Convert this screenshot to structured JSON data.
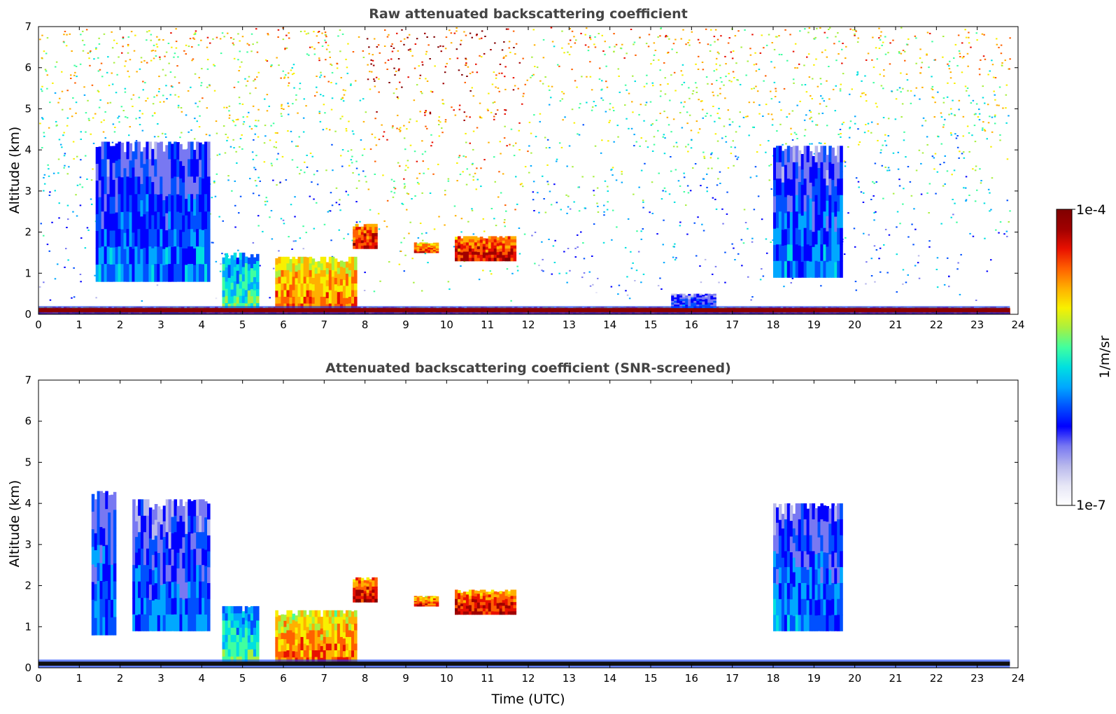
{
  "colors": {
    "colormap": [
      "#ffffff",
      "#e6e6f6",
      "#b8b8ec",
      "#7878f2",
      "#0000ff",
      "#0050ff",
      "#00a8ff",
      "#00e0e0",
      "#40ffa0",
      "#a8f040",
      "#f8f000",
      "#ffb000",
      "#ff6000",
      "#e81000",
      "#a00000",
      "#800000"
    ],
    "surface_layer": "#8b0000",
    "screened_surface": "#111111"
  },
  "chart_data": [
    {
      "type": "heatmap",
      "title": "Raw attenuated backscattering coefficient",
      "ylabel": "Altitude (km)",
      "xlabel": "",
      "xlim": [
        0,
        24
      ],
      "ylim": [
        0,
        7
      ],
      "xticks": [
        "0",
        "1",
        "2",
        "3",
        "4",
        "5",
        "6",
        "7",
        "8",
        "9",
        "10",
        "11",
        "12",
        "13",
        "14",
        "15",
        "16",
        "17",
        "18",
        "19",
        "20",
        "21",
        "22",
        "23",
        "24"
      ],
      "yticks": [
        "0",
        "1",
        "2",
        "3",
        "4",
        "5",
        "6",
        "7"
      ],
      "layers": [
        {
          "x0": 0.0,
          "x1": 23.8,
          "y0": 0.0,
          "y1": 0.18,
          "level": 0.92
        },
        {
          "x0": 4.5,
          "x1": 5.4,
          "y0": 0.1,
          "y1": 1.5,
          "level": 0.55
        },
        {
          "x0": 5.8,
          "x1": 7.8,
          "y0": 0.1,
          "y1": 1.4,
          "level": 0.8
        },
        {
          "x0": 7.7,
          "x1": 8.3,
          "y0": 1.6,
          "y1": 2.2,
          "level": 0.9
        },
        {
          "x0": 9.2,
          "x1": 9.8,
          "y0": 1.5,
          "y1": 1.75,
          "level": 0.85
        },
        {
          "x0": 10.2,
          "x1": 11.7,
          "y0": 1.3,
          "y1": 1.9,
          "level": 0.9
        },
        {
          "x0": 1.4,
          "x1": 4.2,
          "y0": 0.8,
          "y1": 4.2,
          "level": 0.4
        },
        {
          "x0": 18.0,
          "x1": 19.7,
          "y0": 0.9,
          "y1": 4.1,
          "level": 0.4
        },
        {
          "x0": 15.5,
          "x1": 16.6,
          "y0": 0.15,
          "y1": 0.5,
          "level": 0.35
        }
      ],
      "noise": "high-altitude background increasing with altitude and daylight (08-12 UTC)"
    },
    {
      "type": "heatmap",
      "title": "Attenuated backscattering coefficient (SNR-screened)",
      "ylabel": "Altitude (km)",
      "xlabel": "Time (UTC)",
      "xlim": [
        0,
        24
      ],
      "ylim": [
        0,
        7
      ],
      "xticks": [
        "0",
        "1",
        "2",
        "3",
        "4",
        "5",
        "6",
        "7",
        "8",
        "9",
        "10",
        "11",
        "12",
        "13",
        "14",
        "15",
        "16",
        "17",
        "18",
        "19",
        "20",
        "21",
        "22",
        "23",
        "24"
      ],
      "yticks": [
        "0",
        "1",
        "2",
        "3",
        "4",
        "5",
        "6",
        "7"
      ],
      "layers": [
        {
          "x0": 1.3,
          "x1": 1.9,
          "y0": 0.8,
          "y1": 4.3,
          "level": 0.4
        },
        {
          "x0": 2.3,
          "x1": 4.2,
          "y0": 0.9,
          "y1": 4.1,
          "level": 0.38
        },
        {
          "x0": 4.5,
          "x1": 5.4,
          "y0": 0.1,
          "y1": 1.5,
          "level": 0.55
        },
        {
          "x0": 5.8,
          "x1": 7.8,
          "y0": 0.1,
          "y1": 1.4,
          "level": 0.8
        },
        {
          "x0": 7.7,
          "x1": 8.3,
          "y0": 1.6,
          "y1": 2.2,
          "level": 0.9
        },
        {
          "x0": 9.2,
          "x1": 9.8,
          "y0": 1.5,
          "y1": 1.75,
          "level": 0.85
        },
        {
          "x0": 10.2,
          "x1": 11.7,
          "y0": 1.3,
          "y1": 1.9,
          "level": 0.9
        },
        {
          "x0": 18.0,
          "x1": 19.7,
          "y0": 0.9,
          "y1": 4.0,
          "level": 0.4
        }
      ]
    }
  ],
  "colorbar": {
    "label": "1/m/sr",
    "max_label": "1e-4",
    "min_label": "1e-7",
    "range": [
      1e-07,
      0.0001
    ],
    "scale": "log"
  }
}
